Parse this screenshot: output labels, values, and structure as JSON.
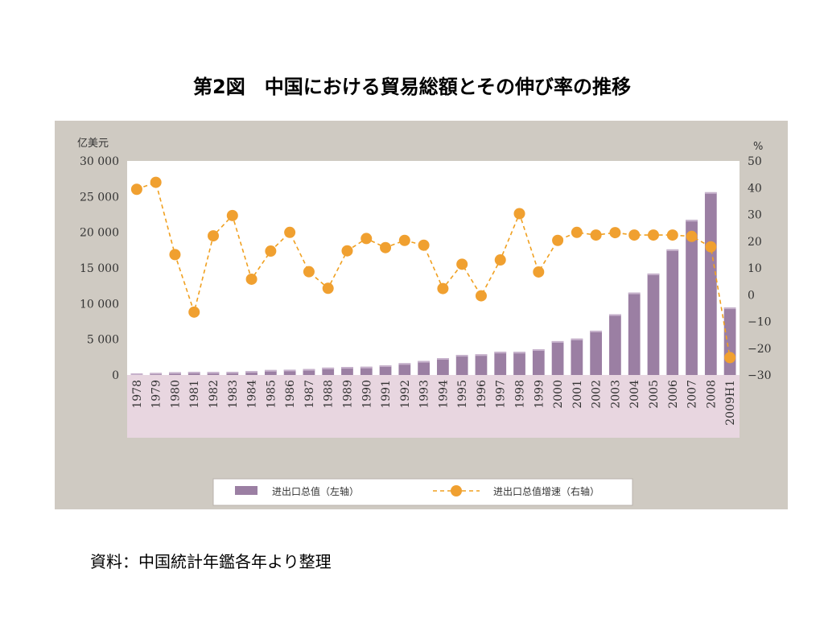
{
  "title": "第2図　中国における貿易総額とその伸び率の推移",
  "source": "資料：中国統計年鑑各年より整理",
  "colors": {
    "bar": "#9b7fa3",
    "bar_top": "#c7b2cc",
    "line": "#f0a020",
    "marker": "#f0a030",
    "axis_band": "#e8d6e0",
    "plot_bg": "#ffffff",
    "panel_bg": "#cfcac2"
  },
  "chart_data": {
    "type": "bar",
    "title": "",
    "y_unit_left": "亿美元",
    "y_unit_right": "%",
    "ylim_left": [
      0,
      30000
    ],
    "ylim_right": [
      -30,
      50
    ],
    "yticks_left": [
      "30 000",
      "25 000",
      "20 000",
      "15 000",
      "10 000",
      "5 000",
      "0"
    ],
    "yticks_right": [
      "50",
      "40",
      "30",
      "20",
      "10",
      "0",
      "−10",
      "−20",
      "−30"
    ],
    "categories": [
      "1978",
      "1979",
      "1980",
      "1981",
      "1982",
      "1983",
      "1984",
      "1985",
      "1986",
      "1987",
      "1988",
      "1989",
      "1990",
      "1991",
      "1992",
      "1993",
      "1994",
      "1995",
      "1996",
      "1997",
      "1998",
      "1999",
      "2000",
      "2001",
      "2002",
      "2003",
      "2004",
      "2005",
      "2006",
      "2007",
      "2008",
      "2009H1"
    ],
    "series": [
      {
        "name": "进出口总值（左轴）",
        "type": "bar",
        "axis": "left",
        "values": [
          206,
          293,
          381,
          440,
          416,
          436,
          535,
          696,
          738,
          827,
          1028,
          1117,
          1154,
          1357,
          1655,
          1957,
          2366,
          2809,
          2899,
          3252,
          3240,
          3606,
          4743,
          5097,
          6208,
          8510,
          11546,
          14219,
          17604,
          21738,
          25616,
          9461
        ]
      },
      {
        "name": "进出口总值增速（右轴）",
        "type": "line",
        "axis": "right",
        "values": [
          39.4,
          42.0,
          15.0,
          -6.5,
          22.0,
          29.6,
          5.8,
          16.3,
          23.3,
          8.6,
          2.4,
          16.4,
          21.0,
          17.6,
          20.3,
          18.5,
          2.3,
          11.4,
          -0.4,
          13.0,
          30.3,
          8.5,
          20.3,
          23.3,
          22.3,
          23.2,
          22.3,
          22.3,
          22.3,
          21.8,
          17.9,
          -23.5
        ]
      }
    ],
    "legend": [
      "进出口总值（左轴）",
      "进出口总值增速（右轴）"
    ],
    "legend_position": "bottom",
    "grid": false
  }
}
